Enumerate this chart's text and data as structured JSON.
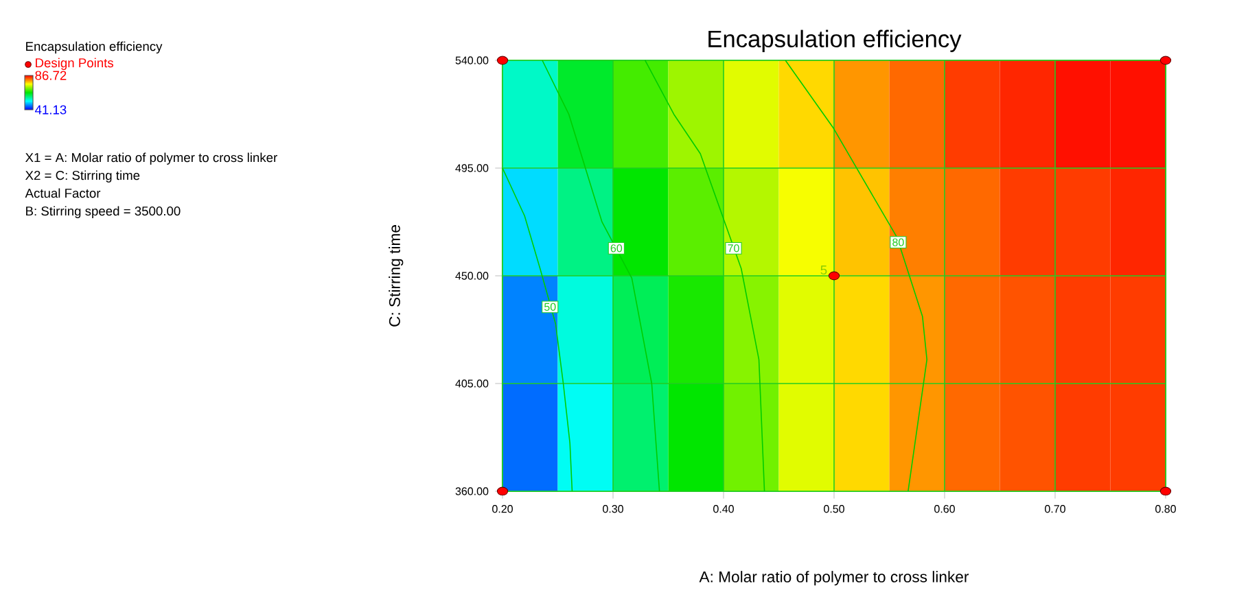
{
  "chart_data": {
    "type": "heatmap",
    "title": "Encapsulation efficiency",
    "xlabel": "A: Molar ratio of polymer to cross linker",
    "ylabel": "C: Stirring time",
    "clabel": "Encapsulation efficiency",
    "x": [
      0.225,
      0.275,
      0.325,
      0.375,
      0.425,
      0.475,
      0.525,
      0.575,
      0.625,
      0.675,
      0.725,
      0.775
    ],
    "y": [
      517.5,
      472.5,
      427.5,
      382.5
    ],
    "cells": [
      [
        55,
        62,
        67,
        71,
        74,
        77,
        80,
        82,
        84,
        85,
        86,
        86
      ],
      [
        51,
        58,
        64,
        68,
        72,
        75,
        78,
        81,
        82,
        84,
        84,
        85
      ],
      [
        47,
        54,
        60,
        65,
        70,
        74,
        77,
        80,
        82,
        83,
        84,
        84
      ],
      [
        46,
        53,
        59,
        64,
        69,
        74,
        77,
        80,
        82,
        83,
        84,
        84
      ]
    ],
    "clim": [
      41.13,
      86.72
    ],
    "cticks": [
      86.72,
      41.13
    ],
    "series": [
      {
        "type": "line",
        "color": "#00cc00",
        "x": [
          0.2,
          0.22,
          0.234,
          0.248,
          0.255,
          0.261,
          0.263
        ],
        "values": [
          495,
          475,
          453,
          430,
          405,
          380,
          360
        ]
      },
      {
        "type": "line",
        "color": "#00cc00",
        "x": [
          0.236,
          0.26,
          0.29,
          0.317,
          0.335,
          0.342
        ],
        "values": [
          540,
          517.5,
          472.5,
          449,
          405,
          360
        ]
      },
      {
        "type": "line",
        "color": "#00cc00",
        "x": [
          0.329,
          0.355,
          0.379,
          0.416,
          0.432,
          0.437
        ],
        "values": [
          540,
          517.5,
          501,
          453,
          415,
          360
        ]
      },
      {
        "type": "line",
        "color": "#00cc00",
        "x": [
          0.456,
          0.499,
          0.557,
          0.58,
          0.584,
          0.567
        ],
        "values": [
          540,
          512,
          466,
          433,
          415,
          360
        ]
      },
      {
        "type": "scatter",
        "name": "Design Points",
        "color": "#ff0000",
        "marker": "circle",
        "x": [
          0.2,
          0.8,
          0.5,
          0.2,
          0.8
        ],
        "values": [
          540,
          540,
          450,
          360,
          360
        ]
      }
    ],
    "xlim": [
      0.2,
      0.8
    ],
    "ylim": [
      360,
      540
    ],
    "xticks": [
      {
        "value": 0.2,
        "label": "0.20"
      },
      {
        "value": 0.3,
        "label": "0.30"
      },
      {
        "value": 0.4,
        "label": "0.40"
      },
      {
        "value": 0.5,
        "label": "0.50"
      },
      {
        "value": 0.6,
        "label": "0.60"
      },
      {
        "value": 0.7,
        "label": "0.70"
      },
      {
        "value": 0.8,
        "label": "0.80"
      }
    ],
    "yticks": [
      {
        "value": 360,
        "label": "360.00"
      },
      {
        "value": 405,
        "label": "405.00"
      },
      {
        "value": 450,
        "label": "450.00"
      },
      {
        "value": 495,
        "label": "495.00"
      },
      {
        "value": 540,
        "label": "540.00"
      }
    ],
    "grid": true,
    "legend": "top left",
    "annotations": [
      {
        "text": "50",
        "x": 0.243,
        "y": 437
      },
      {
        "text": "60",
        "x": 0.303,
        "y": 461.5
      },
      {
        "text": "70",
        "x": 0.409,
        "y": 461.5
      },
      {
        "text": "80",
        "x": 0.558,
        "y": 464
      },
      {
        "text": "5",
        "x": 0.5,
        "y": 450
      },
      "X1 = A: Molar ratio of polymer to cross linker",
      "X2 = C: Stirring time",
      "Actual Factor",
      "B: Stirring speed = 3500.00"
    ]
  }
}
